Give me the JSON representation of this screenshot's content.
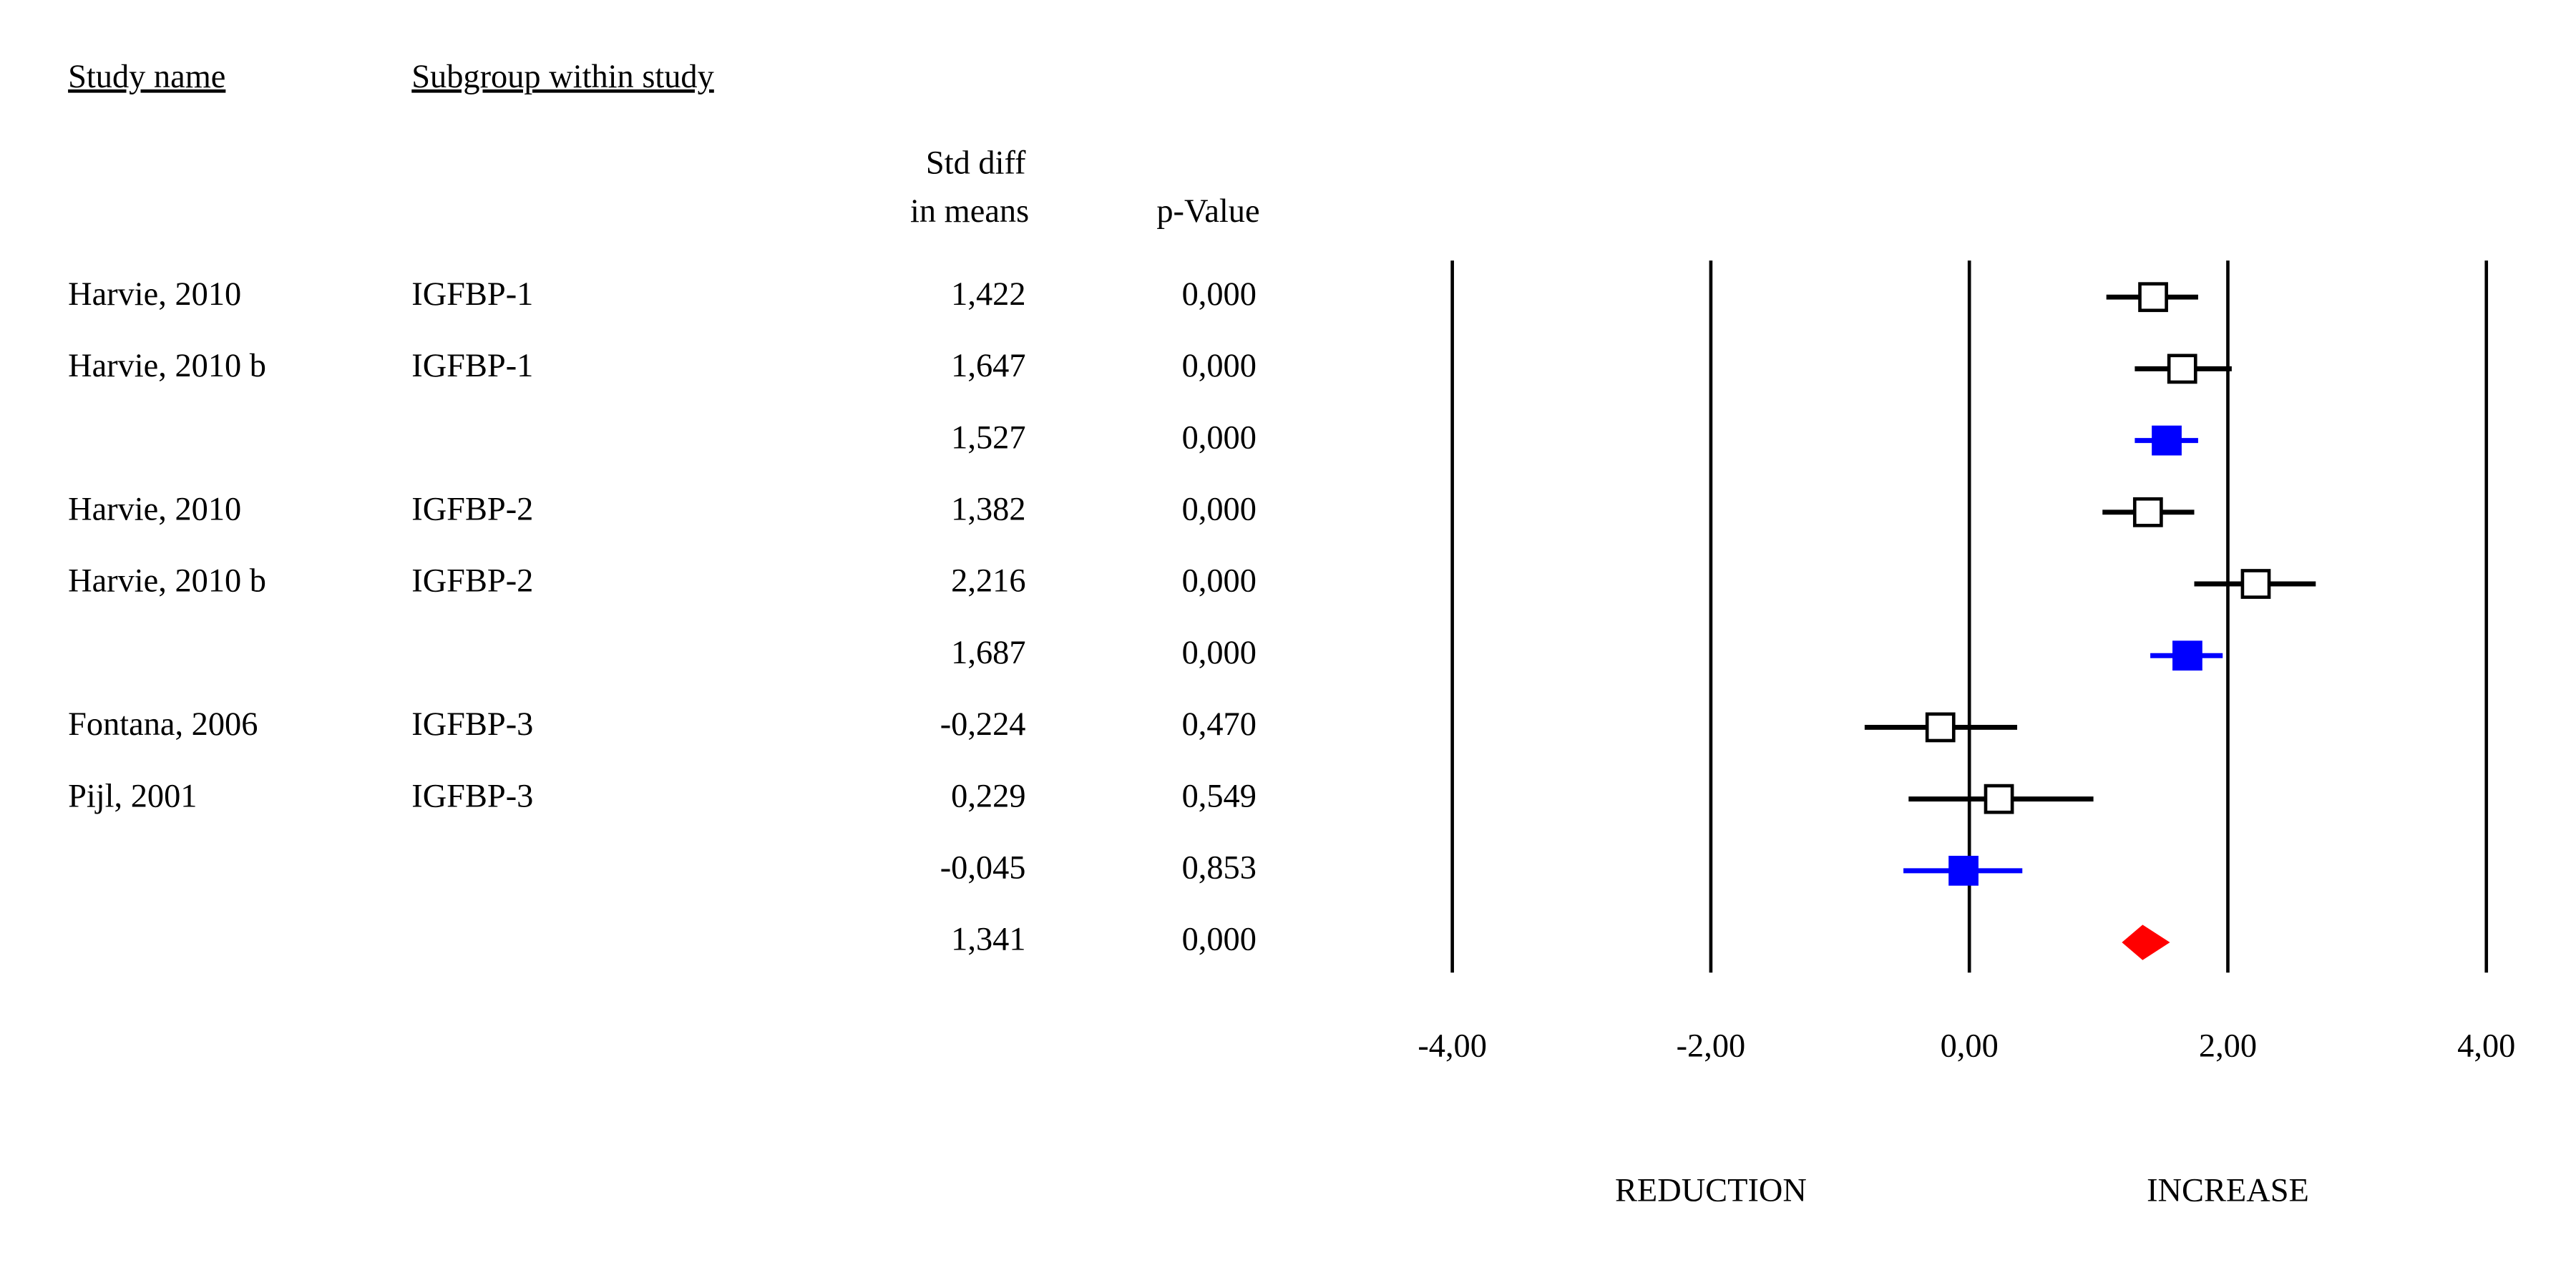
{
  "chart_data": {
    "type": "forest",
    "headers": {
      "study": "Study name",
      "subgroup": "Subgroup within study",
      "value": [
        "Std diff",
        "in means"
      ],
      "p": "p-Value"
    },
    "studies": [
      "Harvie, 2010",
      "Harvie, 2010 b",
      null,
      "Harvie, 2010",
      "Harvie, 2010 b",
      null,
      "Fontana, 2006",
      "Pijl, 2001",
      null,
      null
    ],
    "subgroups": [
      "IGFBP-1",
      "IGFBP-1",
      null,
      "IGFBP-2",
      "IGFBP-2",
      null,
      "IGFBP-3",
      "IGFBP-3",
      null,
      null
    ],
    "values": [
      1.422,
      1.647,
      1.527,
      1.382,
      2.216,
      1.687,
      -0.224,
      0.229,
      -0.045,
      1.341
    ],
    "value_labels": [
      "1,422",
      "1,647",
      "1,527",
      "1,382",
      "2,216",
      "1,687",
      "-0,224",
      "0,229",
      "-0,045",
      "1,341"
    ],
    "lower": [
      1.06,
      1.28,
      1.28,
      1.03,
      1.74,
      1.4,
      -0.81,
      -0.47,
      -0.51,
      1.19
    ],
    "upper": [
      1.77,
      2.03,
      1.77,
      1.74,
      2.68,
      1.96,
      0.37,
      0.96,
      0.41,
      1.54
    ],
    "p_values": [
      0,
      0,
      0,
      0,
      0,
      0,
      0.47,
      0.549,
      0.853,
      0
    ],
    "p_value_labels": [
      "0,000",
      "0,000",
      "0,000",
      "0,000",
      "0,000",
      "0,000",
      "0,470",
      "0,549",
      "0,853",
      "0,000"
    ],
    "marker_colors": [
      "#ffffff",
      "#ffffff",
      "#0000ff",
      "#ffffff",
      "#ffffff",
      "#0000ff",
      "#ffffff",
      "#ffffff",
      "#0000ff",
      "#ff0000"
    ],
    "line_colors": [
      "#000000",
      "#000000",
      "#0000ff",
      "#000000",
      "#000000",
      "#0000ff",
      "#000000",
      "#000000",
      "#0000ff",
      "#ff0000"
    ],
    "marker_shapes": [
      "square",
      "square",
      "square",
      "square",
      "square",
      "square",
      "square",
      "square",
      "square",
      "diamond"
    ],
    "xlim": [
      -4,
      4
    ],
    "xticks": [
      {
        "value": -4,
        "label": "-4,00"
      },
      {
        "value": -2,
        "label": "-2,00"
      },
      {
        "value": 0,
        "label": "0,00"
      },
      {
        "value": 2,
        "label": "2,00"
      },
      {
        "value": 4,
        "label": "4,00"
      }
    ],
    "grid": true,
    "x_labels": [
      "REDUCTION",
      "INCREASE"
    ]
  }
}
